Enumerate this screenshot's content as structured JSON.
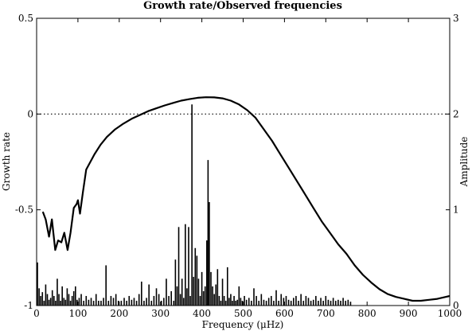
{
  "chart_data": {
    "type": "line",
    "title": "Growth rate/Observed frequencies",
    "xlabel": "Frequency (μHz)",
    "ylabel": "Growth rate",
    "y2label": "Amplitude",
    "xlim": [
      0,
      1000
    ],
    "ylim": [
      -1,
      0.5
    ],
    "y2lim": [
      0,
      3
    ],
    "xticks": [
      0,
      100,
      200,
      300,
      400,
      500,
      600,
      700,
      800,
      900,
      1000
    ],
    "yticks": [
      "-1",
      "-0.5",
      "0",
      "0.5"
    ],
    "y2ticks": [
      "0",
      "1",
      "2",
      "3"
    ],
    "zero_reference_line": {
      "y": 0,
      "style": "dotted"
    },
    "grid": false,
    "series": [
      {
        "axis": "left",
        "style": "line",
        "x": [
          15,
          22,
          30,
          37,
          45,
          52,
          60,
          67,
          75,
          82,
          90,
          97,
          100,
          105,
          112,
          120,
          130,
          140,
          155,
          170,
          190,
          210,
          230,
          250,
          270,
          290,
          310,
          330,
          350,
          370,
          390,
          410,
          430,
          450,
          470,
          490,
          510,
          530,
          550,
          570,
          590,
          610,
          630,
          650,
          670,
          690,
          710,
          730,
          750,
          770,
          790,
          810,
          830,
          850,
          870,
          890,
          910,
          930,
          950,
          970,
          990,
          1000
        ],
        "y": [
          -0.51,
          -0.55,
          -0.64,
          -0.55,
          -0.71,
          -0.66,
          -0.67,
          -0.62,
          -0.71,
          -0.62,
          -0.49,
          -0.47,
          -0.45,
          -0.52,
          -0.41,
          -0.29,
          -0.25,
          -0.21,
          -0.16,
          -0.12,
          -0.08,
          -0.05,
          -0.025,
          -0.005,
          0.015,
          0.03,
          0.045,
          0.058,
          0.07,
          0.078,
          0.085,
          0.088,
          0.087,
          0.082,
          0.07,
          0.05,
          0.02,
          -0.02,
          -0.08,
          -0.14,
          -0.21,
          -0.28,
          -0.35,
          -0.42,
          -0.49,
          -0.56,
          -0.62,
          -0.68,
          -0.73,
          -0.79,
          -0.84,
          -0.88,
          -0.915,
          -0.94,
          -0.955,
          -0.965,
          -0.975,
          -0.975,
          -0.97,
          -0.965,
          -0.955,
          -0.95
        ]
      },
      {
        "axis": "right",
        "style": "stem",
        "x": [
          2,
          6,
          10,
          14,
          18,
          22,
          26,
          30,
          34,
          38,
          42,
          46,
          50,
          54,
          58,
          62,
          66,
          70,
          74,
          78,
          82,
          86,
          90,
          94,
          98,
          103,
          108,
          114,
          120,
          126,
          132,
          138,
          144,
          150,
          156,
          162,
          168,
          174,
          180,
          186,
          192,
          198,
          205,
          212,
          218,
          224,
          230,
          236,
          242,
          248,
          254,
          260,
          266,
          272,
          278,
          284,
          290,
          296,
          302,
          308,
          314,
          320,
          326,
          332,
          336,
          340,
          344,
          348,
          352,
          356,
          360,
          364,
          368,
          372,
          376,
          380,
          384,
          388,
          392,
          396,
          400,
          404,
          408,
          412,
          415,
          418,
          422,
          426,
          430,
          434,
          438,
          442,
          446,
          450,
          454,
          458,
          462,
          466,
          470,
          474,
          478,
          482,
          486,
          490,
          494,
          498,
          503,
          508,
          514,
          520,
          526,
          532,
          538,
          544,
          550,
          556,
          562,
          568,
          574,
          580,
          586,
          592,
          598,
          604,
          610,
          616,
          622,
          628,
          634,
          640,
          646,
          652,
          658,
          664,
          670,
          676,
          682,
          688,
          694,
          700,
          706,
          712,
          718,
          724,
          730,
          736,
          742,
          748,
          754,
          760
        ],
        "y": [
          0.45,
          0.18,
          0.1,
          0.14,
          0.05,
          0.22,
          0.12,
          0.06,
          0.08,
          0.16,
          0.1,
          0.05,
          0.28,
          0.12,
          0.05,
          0.2,
          0.08,
          0.06,
          0.18,
          0.12,
          0.05,
          0.1,
          0.15,
          0.2,
          0.06,
          0.08,
          0.12,
          0.05,
          0.1,
          0.06,
          0.08,
          0.05,
          0.12,
          0.05,
          0.05,
          0.08,
          0.42,
          0.05,
          0.1,
          0.08,
          0.12,
          0.05,
          0.05,
          0.08,
          0.05,
          0.1,
          0.06,
          0.08,
          0.05,
          0.12,
          0.25,
          0.05,
          0.08,
          0.22,
          0.05,
          0.1,
          0.18,
          0.12,
          0.05,
          0.08,
          0.28,
          0.1,
          0.15,
          0.05,
          0.48,
          0.2,
          0.82,
          0.12,
          0.28,
          0.08,
          0.85,
          0.18,
          0.82,
          0.1,
          2.1,
          0.3,
          0.6,
          0.52,
          0.28,
          0.1,
          0.35,
          0.15,
          0.2,
          0.68,
          1.52,
          1.08,
          0.35,
          0.2,
          0.12,
          0.22,
          0.38,
          0.1,
          0.05,
          0.28,
          0.1,
          0.05,
          0.4,
          0.08,
          0.12,
          0.05,
          0.1,
          0.05,
          0.06,
          0.2,
          0.08,
          0.05,
          0.1,
          0.06,
          0.08,
          0.05,
          0.18,
          0.1,
          0.05,
          0.12,
          0.06,
          0.05,
          0.08,
          0.1,
          0.05,
          0.16,
          0.05,
          0.12,
          0.08,
          0.1,
          0.06,
          0.05,
          0.08,
          0.1,
          0.05,
          0.12,
          0.05,
          0.1,
          0.08,
          0.05,
          0.06,
          0.1,
          0.05,
          0.08,
          0.05,
          0.1,
          0.06,
          0.05,
          0.08,
          0.05,
          0.06,
          0.05,
          0.08,
          0.05,
          0.06,
          0.04
        ]
      }
    ]
  }
}
